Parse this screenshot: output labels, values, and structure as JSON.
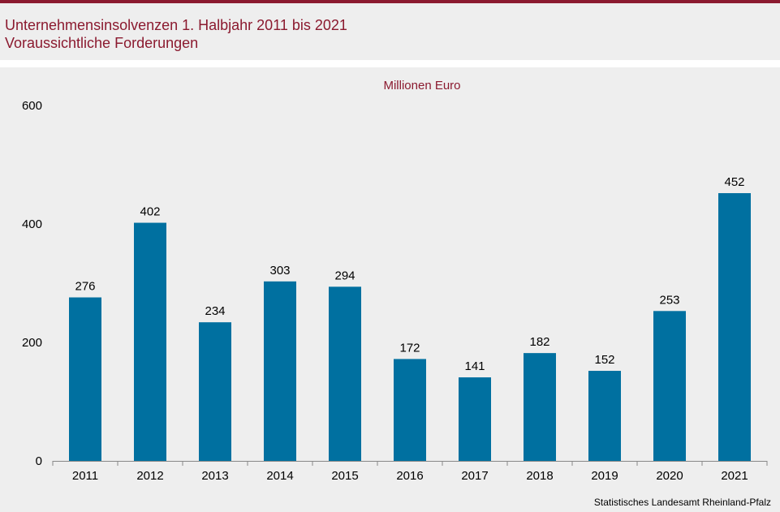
{
  "header": {
    "title": "Unternehmensinsolvenzen 1. Halbjahr 2011 bis 2021",
    "subtitle": "Voraussichtliche Forderungen"
  },
  "colors": {
    "accent": "#8b1a2f",
    "bar": "#0070a0",
    "background": "#eeeeee"
  },
  "source": "Statistisches Landesamt Rheinland-Pfalz",
  "chart_data": {
    "type": "bar",
    "title": "Unternehmensinsolvenzen 1. Halbjahr 2011 bis 2021",
    "subtitle": "Voraussichtliche Forderungen",
    "unit_label": "Millionen Euro",
    "categories": [
      "2011",
      "2012",
      "2013",
      "2014",
      "2015",
      "2016",
      "2017",
      "2018",
      "2019",
      "2020",
      "2021"
    ],
    "values": [
      276,
      402,
      234,
      303,
      294,
      172,
      141,
      182,
      152,
      253,
      452
    ],
    "ylim": [
      0,
      600
    ],
    "yticks": [
      0,
      200,
      400,
      600
    ],
    "grid": false,
    "legend": "none"
  }
}
